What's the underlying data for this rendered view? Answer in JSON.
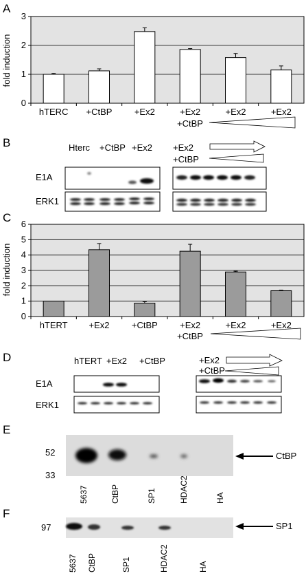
{
  "panels": {
    "A": "A",
    "B": "B",
    "C": "C",
    "D": "D",
    "E": "E",
    "F": "F"
  },
  "chart_data": [
    {
      "type": "bar",
      "panel": "A",
      "ylabel": "fold induction",
      "ylim": [
        0,
        3
      ],
      "yticks": [
        "0",
        "1",
        "2",
        "3"
      ],
      "grid": true,
      "bar_color": "#ffffff",
      "background": "#e3e3e3",
      "categories": [
        "hTERC",
        "+CtBP",
        "+Ex2",
        "+Ex2",
        "+Ex2",
        "+Ex2"
      ],
      "values": [
        1.0,
        1.12,
        2.48,
        1.86,
        1.58,
        1.15
      ],
      "errors": [
        0.03,
        0.07,
        0.13,
        0.03,
        0.14,
        0.14
      ],
      "sub_labels": [
        "+CtBP"
      ]
    },
    {
      "type": "bar",
      "panel": "C",
      "ylabel": "fold induction",
      "ylim": [
        0,
        6
      ],
      "yticks": [
        "0",
        "1",
        "2",
        "3",
        "4",
        "5",
        "6"
      ],
      "grid": true,
      "bar_color": "#9b9b9b",
      "background": "#e3e3e3",
      "categories": [
        "hTERT",
        "+Ex2",
        "+CtBP",
        "+Ex2",
        "+Ex2",
        "+Ex2"
      ],
      "values": [
        1.0,
        4.35,
        0.87,
        4.25,
        2.9,
        1.68
      ],
      "errors": [
        0.0,
        0.4,
        0.1,
        0.45,
        0.05,
        0.03
      ],
      "sub_labels": [
        "+CtBP"
      ]
    }
  ],
  "blotB": {
    "headers": [
      "Hterc",
      "+CtBP",
      "+Ex2"
    ],
    "right_headers": [
      "+Ex2",
      "+CtBP"
    ],
    "rows": [
      "E1A",
      "ERK1"
    ]
  },
  "blotD": {
    "headers": [
      "hTERT",
      "+Ex2",
      "+CtBP"
    ],
    "right_headers": [
      "+Ex2",
      "+CtBP"
    ],
    "rows": [
      "E1A",
      "ERK1"
    ]
  },
  "blotE": {
    "markers": [
      "52",
      "33"
    ],
    "arrow_label": "CtBP",
    "lanes": [
      "5637",
      "CtBP",
      "SP1",
      "HDAC2",
      "HA"
    ]
  },
  "blotF": {
    "markers": [
      "97"
    ],
    "arrow_label": "SP1",
    "lanes": [
      "5637",
      "CtBP",
      "SP1",
      "HDAC2",
      "HA"
    ]
  }
}
